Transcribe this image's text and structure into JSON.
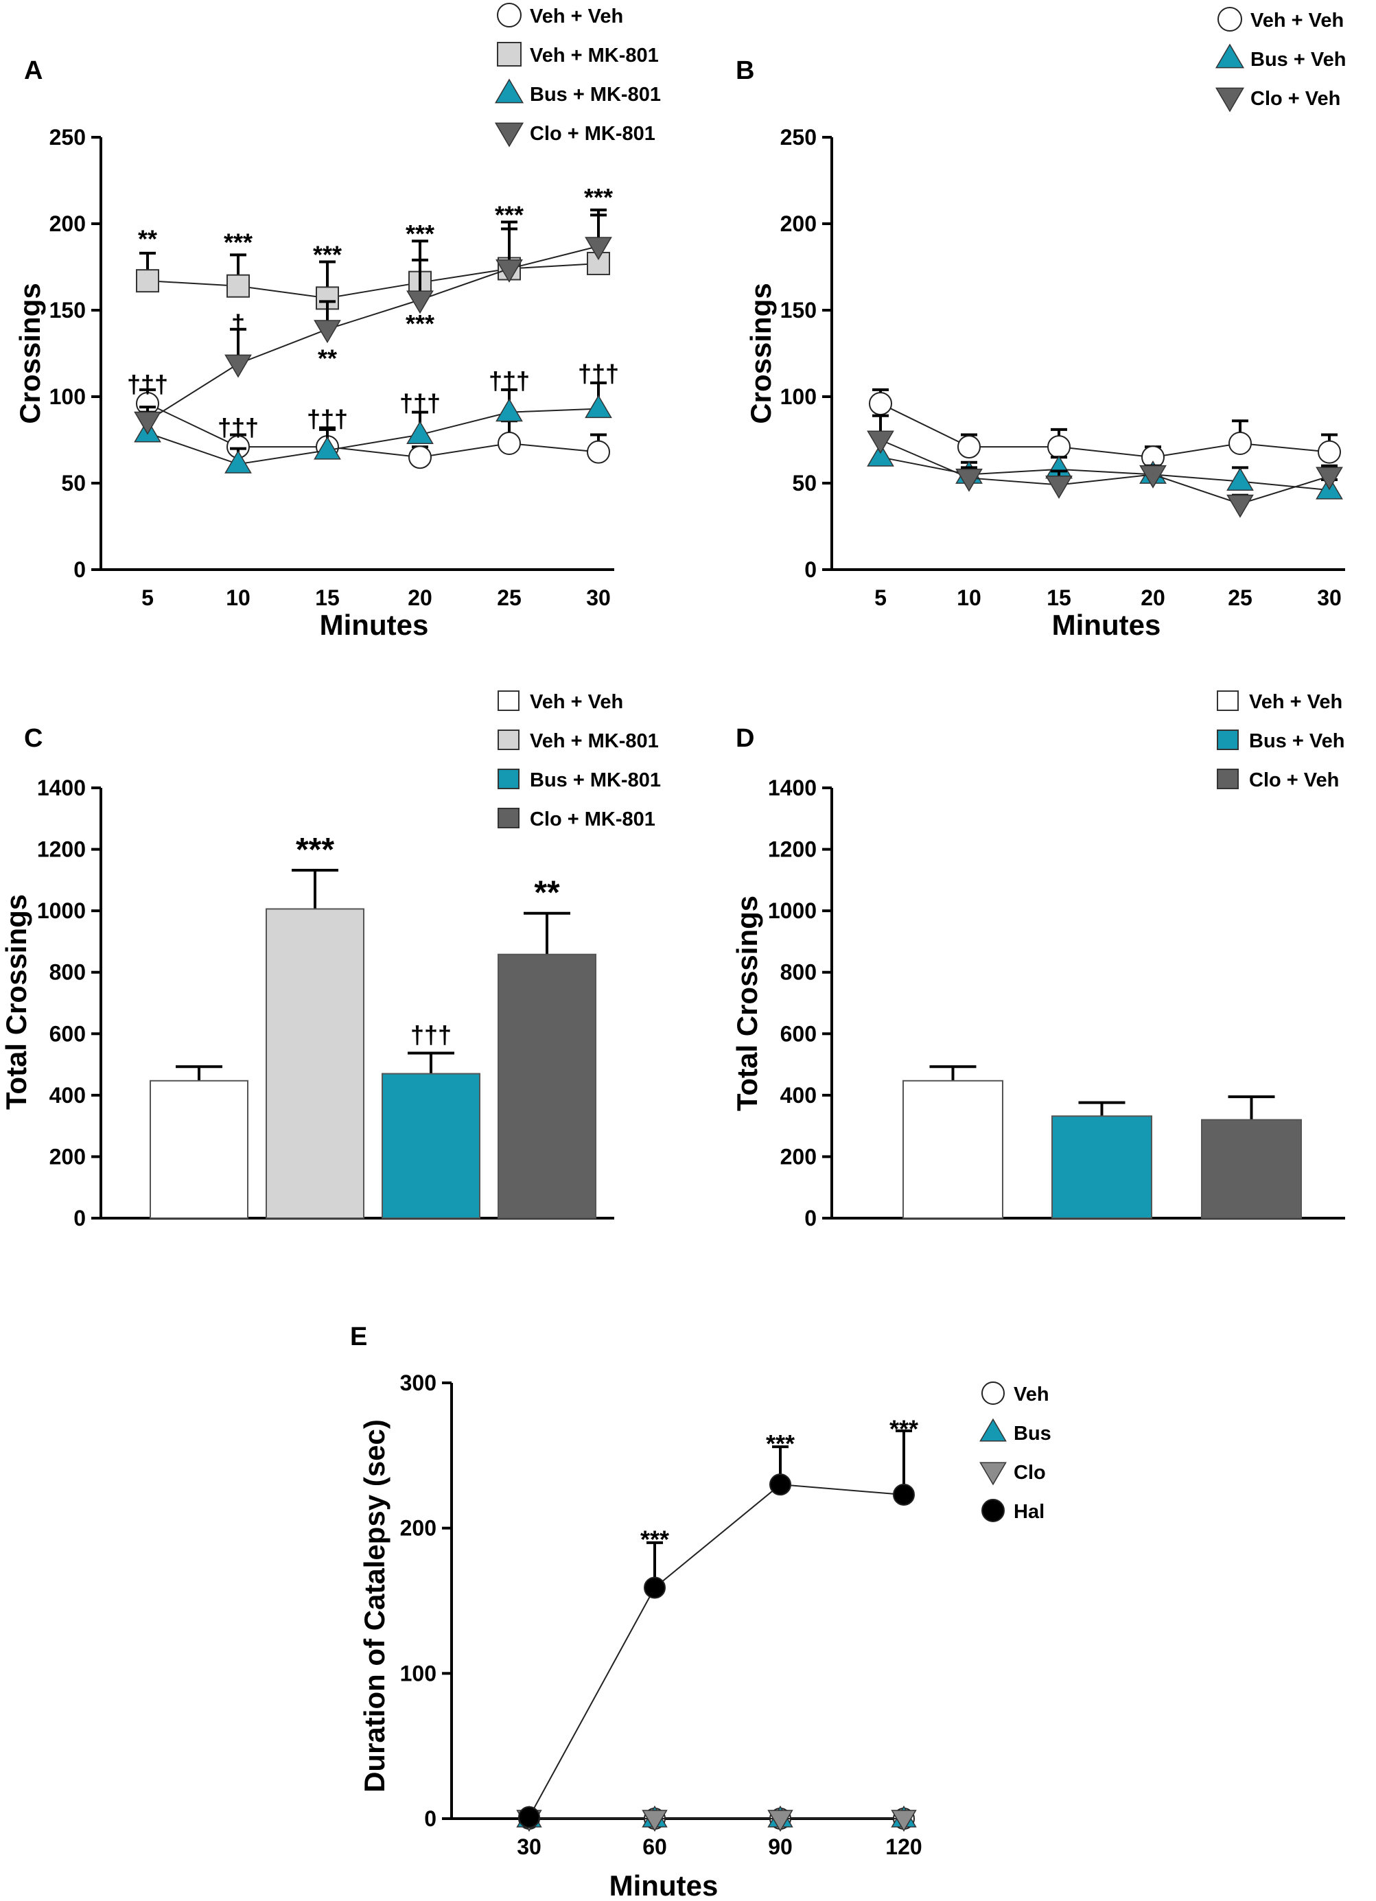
{
  "colors": {
    "veh_veh": "#ffffff",
    "veh_mk801": "#d4d4d4",
    "bus": "#1599b3",
    "clo": "#616161",
    "clo_catalepsy": "#8c8c8c",
    "hal": "#000000",
    "stroke": "#222222"
  },
  "chart_data": [
    {
      "id": "A",
      "type": "line",
      "panel_label": "A",
      "xlabel": "Minutes",
      "ylabel": "Crossings",
      "x_ticks": [
        "5",
        "10",
        "15",
        "20",
        "25",
        "30"
      ],
      "x": [
        5,
        10,
        15,
        20,
        25,
        30
      ],
      "y_ticks": [
        "0",
        "50",
        "100",
        "150",
        "200",
        "250"
      ],
      "ylim": [
        0,
        250
      ],
      "series": [
        {
          "name": "Veh + Veh",
          "marker": "circle",
          "color": "#ffffff",
          "values": [
            96,
            71,
            71,
            65,
            73,
            68
          ],
          "err": [
            8,
            7,
            10,
            6,
            13,
            10
          ]
        },
        {
          "name": "Veh + MK-801",
          "marker": "square",
          "color": "#d4d4d4",
          "values": [
            167,
            164,
            157,
            166,
            174,
            177
          ],
          "err": [
            16,
            18,
            21,
            24,
            27,
            31
          ]
        },
        {
          "name": "Bus + MK-801",
          "marker": "triangle-up",
          "color": "#1599b3",
          "values": [
            79,
            61,
            69,
            78,
            91,
            93
          ],
          "err": [
            15,
            9,
            13,
            13,
            13,
            15
          ]
        },
        {
          "name": "Clo + MK-801",
          "marker": "triangle-down",
          "color": "#616161",
          "values": [
            86,
            119,
            139,
            156,
            174,
            187
          ],
          "err": [
            5,
            20,
            16,
            23,
            23,
            18
          ]
        }
      ],
      "annotations": [
        {
          "text": "**",
          "x": 5,
          "y": 191
        },
        {
          "text": "***",
          "x": 10,
          "y": 189
        },
        {
          "text": "***",
          "x": 15,
          "y": 182
        },
        {
          "text": "***",
          "x": 20,
          "y": 194
        },
        {
          "text": "***",
          "x": 25,
          "y": 205
        },
        {
          "text": "***",
          "x": 30,
          "y": 215
        },
        {
          "text": "†",
          "x": 10,
          "y": 142
        },
        {
          "text": "**",
          "x": 15,
          "y": 122
        },
        {
          "text": "***",
          "x": 20,
          "y": 142
        },
        {
          "text": "†††",
          "x": 5,
          "y": 107
        },
        {
          "text": "†††",
          "x": 10,
          "y": 82
        },
        {
          "text": "†††",
          "x": 15,
          "y": 87
        },
        {
          "text": "†††",
          "x": 20,
          "y": 96
        },
        {
          "text": "†††",
          "x": 25,
          "y": 109
        },
        {
          "text": "†††",
          "x": 30,
          "y": 113
        }
      ]
    },
    {
      "id": "B",
      "type": "line",
      "panel_label": "B",
      "xlabel": "Minutes",
      "ylabel": "Crossings",
      "x_ticks": [
        "5",
        "10",
        "15",
        "20",
        "25",
        "30"
      ],
      "x": [
        5,
        10,
        15,
        20,
        25,
        30
      ],
      "y_ticks": [
        "0",
        "50",
        "100",
        "150",
        "200",
        "250"
      ],
      "ylim": [
        0,
        250
      ],
      "series": [
        {
          "name": "Veh + Veh",
          "marker": "circle",
          "color": "#ffffff",
          "values": [
            96,
            71,
            71,
            65,
            73,
            68
          ],
          "err": [
            8,
            7,
            10,
            6,
            13,
            10
          ]
        },
        {
          "name": "Bus + Veh",
          "marker": "triangle-up",
          "color": "#1599b3",
          "values": [
            65,
            55,
            58,
            55,
            51,
            46
          ],
          "err": [
            12,
            7,
            7,
            4,
            8,
            6
          ]
        },
        {
          "name": "Clo + Veh",
          "marker": "triangle-down",
          "color": "#616161",
          "values": [
            75,
            53,
            49,
            55,
            38,
            54
          ],
          "err": [
            14,
            6,
            8,
            5,
            5,
            6
          ]
        }
      ]
    },
    {
      "id": "C",
      "type": "bar",
      "panel_label": "C",
      "ylabel": "Total Crossings",
      "y_ticks": [
        "0",
        "200",
        "400",
        "600",
        "800",
        "1000",
        "1200",
        "1400"
      ],
      "ylim": [
        0,
        1400
      ],
      "categories": [
        "Veh + Veh",
        "Veh + MK-801",
        "Bus + MK-801",
        "Clo + MK-801"
      ],
      "values": [
        447,
        1006,
        470,
        858
      ],
      "err": [
        46,
        126,
        67,
        134
      ],
      "colors": [
        "#ffffff",
        "#d4d4d4",
        "#1599b3",
        "#616161"
      ],
      "annotations": [
        "",
        "***",
        "†††",
        "**"
      ]
    },
    {
      "id": "D",
      "type": "bar",
      "panel_label": "D",
      "ylabel": "Total Crossings",
      "y_ticks": [
        "0",
        "200",
        "400",
        "600",
        "800",
        "1000",
        "1200",
        "1400"
      ],
      "ylim": [
        0,
        1400
      ],
      "categories": [
        "Veh + Veh",
        "Bus + Veh",
        "Clo + Veh"
      ],
      "values": [
        447,
        332,
        320
      ],
      "err": [
        46,
        44,
        75
      ],
      "colors": [
        "#ffffff",
        "#1599b3",
        "#616161"
      ],
      "annotations": [
        "",
        "",
        ""
      ]
    },
    {
      "id": "E",
      "type": "line",
      "panel_label": "E",
      "xlabel": "Minutes",
      "ylabel": "Duration of Catalepsy (sec)",
      "x_ticks": [
        "30",
        "60",
        "90",
        "120"
      ],
      "x": [
        30,
        60,
        90,
        120
      ],
      "y_ticks": [
        "0",
        "100",
        "200",
        "300"
      ],
      "ylim": [
        0,
        300
      ],
      "series": [
        {
          "name": "Veh",
          "marker": "circle",
          "color": "#ffffff",
          "values": [
            0,
            0,
            0,
            0
          ],
          "err": [
            0,
            0,
            0,
            0
          ]
        },
        {
          "name": "Bus",
          "marker": "triangle-up",
          "color": "#1599b3",
          "values": [
            0,
            0,
            0,
            0
          ],
          "err": [
            0,
            0,
            0,
            0
          ]
        },
        {
          "name": "Clo",
          "marker": "triangle-down",
          "color": "#8c8c8c",
          "values": [
            0,
            0,
            0,
            0
          ],
          "err": [
            0,
            0,
            0,
            0
          ]
        },
        {
          "name": "Hal",
          "marker": "circle",
          "color": "#000000",
          "values": [
            1,
            159,
            230,
            223
          ],
          "err": [
            0,
            31,
            26,
            44
          ]
        }
      ],
      "annotations": [
        {
          "text": "***",
          "x": 60,
          "y": 192
        },
        {
          "text": "***",
          "x": 90,
          "y": 258
        },
        {
          "text": "***",
          "x": 120,
          "y": 268
        }
      ]
    }
  ]
}
